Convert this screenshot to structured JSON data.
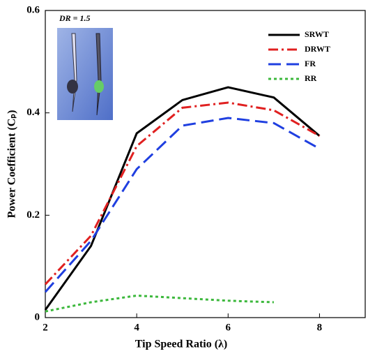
{
  "chart_data": {
    "type": "line",
    "xlabel": "Tip Speed Ratio (λ)",
    "ylabel": "Power Coefficient (Cₚ)",
    "annotation": "DR = 1.5",
    "xlim": [
      2,
      9
    ],
    "xticks": [
      2,
      4,
      6,
      8
    ],
    "ylim": [
      0,
      0.6
    ],
    "yticks": [
      0,
      0.2,
      0.4,
      0.6
    ],
    "legend": "upper right",
    "series": [
      {
        "name": "SRWT",
        "color": "#000000",
        "dash": "solid",
        "x": [
          2,
          3,
          4,
          5,
          6,
          7,
          8
        ],
        "values": [
          0.015,
          0.14,
          0.36,
          0.425,
          0.45,
          0.43,
          0.355
        ]
      },
      {
        "name": "DRWT",
        "color": "#e02020",
        "dash": "dashdot",
        "x": [
          2,
          3,
          4,
          5,
          6,
          7,
          8
        ],
        "values": [
          0.065,
          0.16,
          0.335,
          0.41,
          0.42,
          0.405,
          0.355
        ]
      },
      {
        "name": "FR",
        "color": "#1f3fe0",
        "dash": "dashed",
        "x": [
          2,
          3,
          4,
          5,
          6,
          7,
          8
        ],
        "values": [
          0.05,
          0.15,
          0.29,
          0.375,
          0.39,
          0.38,
          0.33
        ]
      },
      {
        "name": "RR",
        "color": "#3cb83c",
        "dash": "dotted",
        "x": [
          2,
          3,
          4,
          5,
          6,
          7
        ],
        "values": [
          0.012,
          0.03,
          0.043,
          0.038,
          0.033,
          0.03
        ]
      }
    ]
  }
}
